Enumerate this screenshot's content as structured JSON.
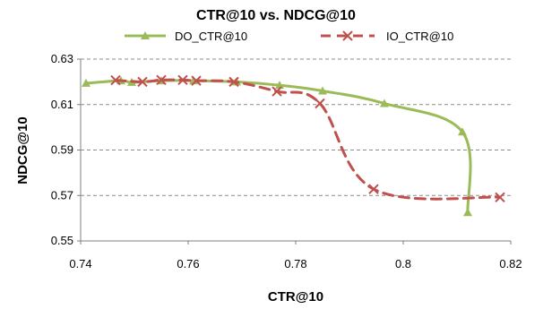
{
  "chart_data": {
    "type": "line",
    "title": "CTR@10 vs. NDCG@10",
    "xlabel": "CTR@10",
    "ylabel": "NDCG@10",
    "xlim": [
      0.74,
      0.82
    ],
    "ylim": [
      0.55,
      0.63
    ],
    "x_ticks": [
      "0.74",
      "0.76",
      "0.78",
      "0.8",
      "0.82"
    ],
    "y_ticks": [
      "0.55",
      "0.57",
      "0.59",
      "0.61",
      "0.63"
    ],
    "grid": "horizontal dashed",
    "legend_position": "top",
    "series": [
      {
        "name": "DO_CTR@10",
        "color": "#9bbb59",
        "line_style": "solid",
        "marker": "triangle",
        "points": [
          [
            0.741,
            0.6194
          ],
          [
            0.7475,
            0.6205
          ],
          [
            0.7495,
            0.6198
          ],
          [
            0.755,
            0.6205
          ],
          [
            0.761,
            0.6205
          ],
          [
            0.769,
            0.62
          ],
          [
            0.777,
            0.6185
          ],
          [
            0.785,
            0.616
          ],
          [
            0.7965,
            0.6105
          ],
          [
            0.811,
            0.598
          ],
          [
            0.812,
            0.5625
          ]
        ]
      },
      {
        "name": "IO_CTR@10",
        "color": "#c0504d",
        "line_style": "dashed",
        "marker": "x",
        "points": [
          [
            0.7465,
            0.6207
          ],
          [
            0.7515,
            0.62
          ],
          [
            0.755,
            0.6208
          ],
          [
            0.759,
            0.6208
          ],
          [
            0.7615,
            0.6205
          ],
          [
            0.7685,
            0.62
          ],
          [
            0.7765,
            0.6158
          ],
          [
            0.7845,
            0.6105
          ],
          [
            0.7945,
            0.5728
          ],
          [
            0.818,
            0.5692
          ]
        ]
      }
    ]
  }
}
